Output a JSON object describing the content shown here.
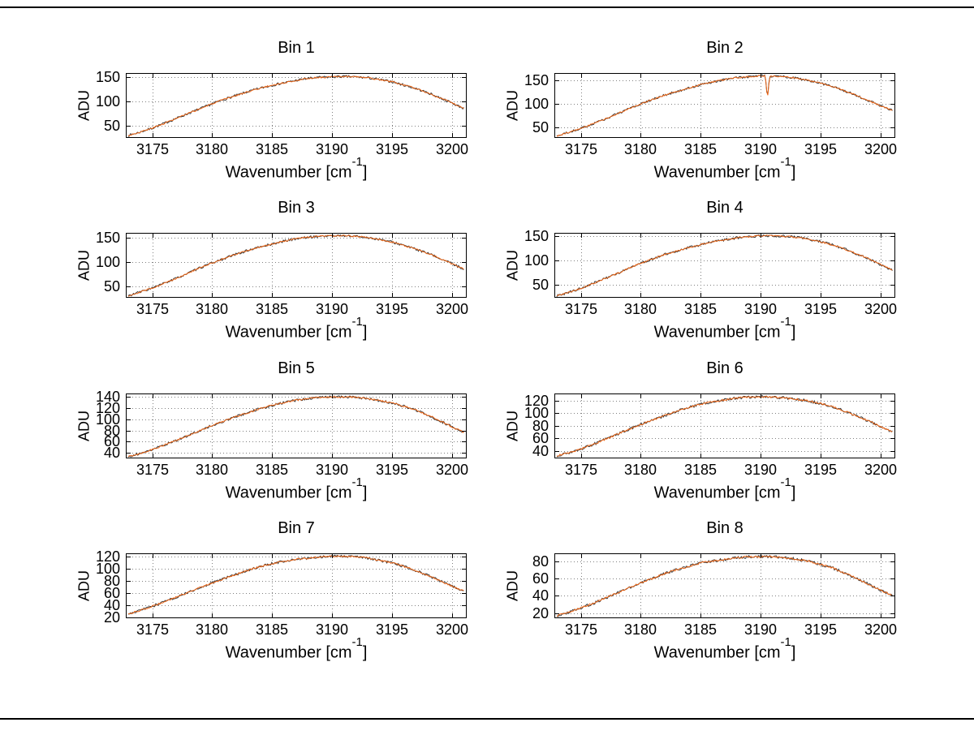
{
  "figure": {
    "background": "#ffffff",
    "border_color": "#000000",
    "grid_color": "#808080",
    "axis_color": "#000000"
  },
  "chart_data": [
    {
      "type": "line",
      "title": "Bin 1",
      "ylabel": "ADU",
      "xlabel_prefix": "Wavenumber [cm",
      "xlabel_sup": "-1",
      "xlabel_suffix": "]",
      "xlim": [
        3172.8,
        3201.2
      ],
      "ylim": [
        25,
        158
      ],
      "xticks": [
        3175,
        3180,
        3185,
        3190,
        3195,
        3200
      ],
      "yticks": [
        50,
        100,
        150
      ],
      "line_color": "#ec6414",
      "line_color_dark": "#3a3a3a",
      "noise": 1.5,
      "x_start": 3173,
      "x_step": 1,
      "y": [
        30,
        37,
        45,
        55,
        65,
        75,
        85,
        95,
        104,
        112,
        120,
        127,
        133,
        138,
        143,
        147,
        149,
        150,
        151,
        150,
        148,
        144,
        140,
        133,
        126,
        117,
        107,
        96,
        85
      ]
    },
    {
      "type": "line",
      "title": "Bin 2",
      "ylabel": "ADU",
      "xlabel_prefix": "Wavenumber [cm",
      "xlabel_sup": "-1",
      "xlabel_suffix": "]",
      "xlim": [
        3172.8,
        3201.2
      ],
      "ylim": [
        28,
        166
      ],
      "xticks": [
        3175,
        3180,
        3185,
        3190,
        3195,
        3200
      ],
      "yticks": [
        50,
        100,
        150
      ],
      "line_color": "#ec6414",
      "line_color_dark": "#3a3a3a",
      "noise": 1.5,
      "x_start": 3173,
      "x_step": 1,
      "y": [
        32,
        40,
        48,
        58,
        68,
        79,
        90,
        100,
        110,
        119,
        127,
        134,
        141,
        147,
        152,
        156,
        158,
        160,
        159,
        158,
        155,
        150,
        144,
        137,
        128,
        118,
        107,
        96,
        86
      ],
      "spike": {
        "x": 3190.55,
        "y": 112,
        "half_width": 0.18
      }
    },
    {
      "type": "line",
      "title": "Bin 3",
      "ylabel": "ADU",
      "xlabel_prefix": "Wavenumber [cm",
      "xlabel_sup": "-1",
      "xlabel_suffix": "]",
      "xlim": [
        3172.8,
        3201.2
      ],
      "ylim": [
        26,
        160
      ],
      "xticks": [
        3175,
        3180,
        3185,
        3190,
        3195,
        3200
      ],
      "yticks": [
        50,
        100,
        150
      ],
      "line_color": "#ec6414",
      "line_color_dark": "#3a3a3a",
      "noise": 1.5,
      "x_start": 3173,
      "x_step": 1,
      "y": [
        30,
        38,
        46,
        56,
        66,
        77,
        88,
        98,
        107,
        116,
        124,
        131,
        137,
        143,
        148,
        151,
        153,
        154,
        154,
        153,
        150,
        146,
        141,
        134,
        126,
        117,
        107,
        96,
        85
      ]
    },
    {
      "type": "line",
      "title": "Bin 4",
      "ylabel": "ADU",
      "xlabel_prefix": "Wavenumber [cm",
      "xlabel_sup": "-1",
      "xlabel_suffix": "]",
      "xlim": [
        3172.8,
        3201.2
      ],
      "ylim": [
        24,
        156
      ],
      "xticks": [
        3175,
        3180,
        3185,
        3190,
        3195,
        3200
      ],
      "yticks": [
        50,
        100,
        150
      ],
      "line_color": "#ec6414",
      "line_color_dark": "#3a3a3a",
      "noise": 1.5,
      "x_start": 3173,
      "x_step": 1,
      "y": [
        28,
        35,
        43,
        53,
        63,
        73,
        84,
        94,
        103,
        112,
        119,
        126,
        132,
        138,
        142,
        146,
        148,
        150,
        150,
        149,
        147,
        143,
        138,
        131,
        123,
        113,
        103,
        91,
        80
      ]
    },
    {
      "type": "line",
      "title": "Bin 5",
      "ylabel": "ADU",
      "xlabel_prefix": "Wavenumber [cm",
      "xlabel_sup": "-1",
      "xlabel_suffix": "]",
      "xlim": [
        3172.8,
        3201.2
      ],
      "ylim": [
        30,
        146
      ],
      "xticks": [
        3175,
        3180,
        3185,
        3190,
        3195,
        3200
      ],
      "yticks": [
        40,
        60,
        80,
        100,
        120,
        140
      ],
      "line_color": "#ec6414",
      "line_color_dark": "#3a3a3a",
      "noise": 1.4,
      "x_start": 3173,
      "x_step": 1,
      "y": [
        33,
        39,
        46,
        54,
        62,
        71,
        80,
        89,
        97,
        105,
        112,
        119,
        125,
        130,
        134,
        137,
        139,
        140,
        140,
        139,
        137,
        133,
        129,
        123,
        116,
        107,
        97,
        86,
        76
      ]
    },
    {
      "type": "line",
      "title": "Bin 6",
      "ylabel": "ADU",
      "xlabel_prefix": "Wavenumber [cm",
      "xlabel_sup": "-1",
      "xlabel_suffix": "]",
      "xlim": [
        3172.8,
        3201.2
      ],
      "ylim": [
        28,
        131
      ],
      "xticks": [
        3175,
        3180,
        3185,
        3190,
        3195,
        3200
      ],
      "yticks": [
        40,
        60,
        80,
        100,
        120
      ],
      "line_color": "#ec6414",
      "line_color_dark": "#3a3a3a",
      "noise": 1.3,
      "x_start": 3173,
      "x_step": 1,
      "y": [
        32,
        37,
        43,
        50,
        58,
        66,
        74,
        82,
        89,
        96,
        103,
        109,
        114,
        118,
        121,
        124,
        125,
        126,
        125,
        124,
        122,
        119,
        115,
        110,
        103,
        95,
        87,
        78,
        70
      ]
    },
    {
      "type": "line",
      "title": "Bin 7",
      "ylabel": "ADU",
      "xlabel_prefix": "Wavenumber [cm",
      "xlabel_sup": "-1",
      "xlabel_suffix": "]",
      "xlim": [
        3172.8,
        3201.2
      ],
      "ylim": [
        18,
        126
      ],
      "xticks": [
        3175,
        3180,
        3185,
        3190,
        3195,
        3200
      ],
      "yticks": [
        20,
        40,
        60,
        80,
        100,
        120
      ],
      "line_color": "#ec6414",
      "line_color_dark": "#3a3a3a",
      "noise": 1.3,
      "x_start": 3173,
      "x_step": 1,
      "y": [
        25,
        31,
        38,
        45,
        53,
        61,
        69,
        77,
        84,
        91,
        98,
        104,
        109,
        113,
        116,
        118,
        120,
        121,
        121,
        120,
        118,
        114,
        110,
        104,
        97,
        89,
        80,
        71,
        63
      ]
    },
    {
      "type": "line",
      "title": "Bin 8",
      "ylabel": "ADU",
      "xlabel_prefix": "Wavenumber [cm",
      "xlabel_sup": "-1",
      "xlabel_suffix": "]",
      "xlim": [
        3172.8,
        3201.2
      ],
      "ylim": [
        14,
        89
      ],
      "xticks": [
        3175,
        3180,
        3185,
        3190,
        3195,
        3200
      ],
      "yticks": [
        20,
        40,
        60,
        80
      ],
      "line_color": "#ec6414",
      "line_color_dark": "#3a3a3a",
      "noise": 1.0,
      "x_start": 3173,
      "x_step": 1,
      "y": [
        17,
        21,
        26,
        31,
        37,
        43,
        49,
        55,
        60,
        66,
        70,
        74,
        78,
        80,
        82,
        84,
        85,
        85,
        85,
        84,
        82,
        80,
        76,
        72,
        66,
        60,
        53,
        46,
        40
      ]
    }
  ]
}
